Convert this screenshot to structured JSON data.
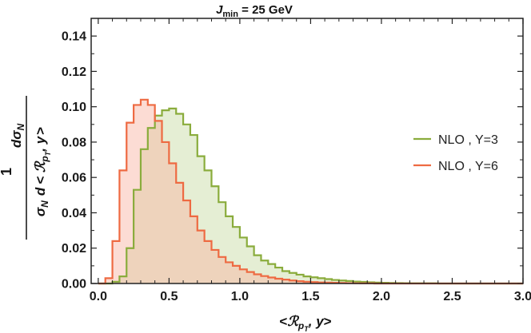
{
  "chart_data": {
    "type": "area",
    "title": {
      "main": "J",
      "sub": "min",
      "rest": " = 25 GeV"
    },
    "xlabel": {
      "open": "<",
      "script": "ℛ",
      "sub": "p",
      "subsub": "T",
      "rest": ", y",
      "close": ">"
    },
    "ylabel": {
      "one": "1",
      "numer_d": "d",
      "numer_sigma": "σ",
      "numer_sub": "N",
      "denom_sigma": "σ",
      "denom_sub": "N",
      "denom_d": "d",
      "denom_r": "< ℛ",
      "denom_r_sub": "p",
      "denom_r_subsub": "T",
      "denom_r_rest": ", y",
      "denom_close": ">"
    },
    "xlim": [
      -0.05,
      3.0
    ],
    "ylim": [
      0.0,
      0.15
    ],
    "xticks": [
      0.0,
      0.5,
      1.0,
      1.5,
      2.0,
      2.5,
      3.0
    ],
    "xtick_labels": [
      "0.0",
      "0.5",
      "1.0",
      "1.5",
      "2.0",
      "2.5",
      "3.0"
    ],
    "yticks": [
      0.0,
      0.02,
      0.04,
      0.06,
      0.08,
      0.1,
      0.12,
      0.14
    ],
    "ytick_labels": [
      "0.00",
      "0.02",
      "0.04",
      "0.06",
      "0.08",
      "0.10",
      "0.12",
      "0.14"
    ],
    "bin_width": 0.05,
    "bin_start": 0.0,
    "grid": false,
    "legend_position": "right",
    "series": [
      {
        "name": "NLO , Y=3",
        "color": "#8aac3c",
        "fill": "rgba(198,218,160,0.45)",
        "values": [
          0.0,
          0.0,
          0.001,
          0.004,
          0.02,
          0.053,
          0.076,
          0.088,
          0.095,
          0.098,
          0.099,
          0.096,
          0.09,
          0.084,
          0.072,
          0.064,
          0.055,
          0.046,
          0.038,
          0.032,
          0.026,
          0.021,
          0.016,
          0.013,
          0.011,
          0.009,
          0.007,
          0.006,
          0.005,
          0.004,
          0.0035,
          0.003,
          0.0025,
          0.002,
          0.0017,
          0.0014,
          0.0011,
          0.0009,
          0.0007,
          0.0005,
          0.0004,
          0.0003,
          0.00025,
          0.0002,
          0.00015,
          0.0001,
          0.0001,
          0.0001,
          0.0,
          0.0,
          0.0,
          0.0,
          0.0,
          0.0,
          0.0,
          0.0,
          0.0,
          0.0,
          0.0,
          0.0
        ]
      },
      {
        "name": "NLO , Y=6",
        "color": "#ee6a42",
        "fill": "rgba(248,178,160,0.45)",
        "values": [
          0.0,
          0.003,
          0.024,
          0.064,
          0.091,
          0.101,
          0.104,
          0.101,
          0.092,
          0.08,
          0.068,
          0.057,
          0.047,
          0.038,
          0.03,
          0.024,
          0.019,
          0.015,
          0.012,
          0.01,
          0.008,
          0.0065,
          0.0052,
          0.0042,
          0.0034,
          0.0027,
          0.0022,
          0.0017,
          0.0013,
          0.001,
          0.0008,
          0.0006,
          0.0005,
          0.0004,
          0.0003,
          0.0002,
          0.00015,
          0.0001,
          0.0001,
          0.0,
          0.0,
          0.0,
          0.0,
          0.0,
          0.0,
          0.0,
          0.0,
          0.0,
          0.0,
          0.0,
          0.0,
          0.0,
          0.0,
          0.0,
          0.0,
          0.0,
          0.0,
          0.0,
          0.0,
          0.0
        ]
      }
    ]
  }
}
